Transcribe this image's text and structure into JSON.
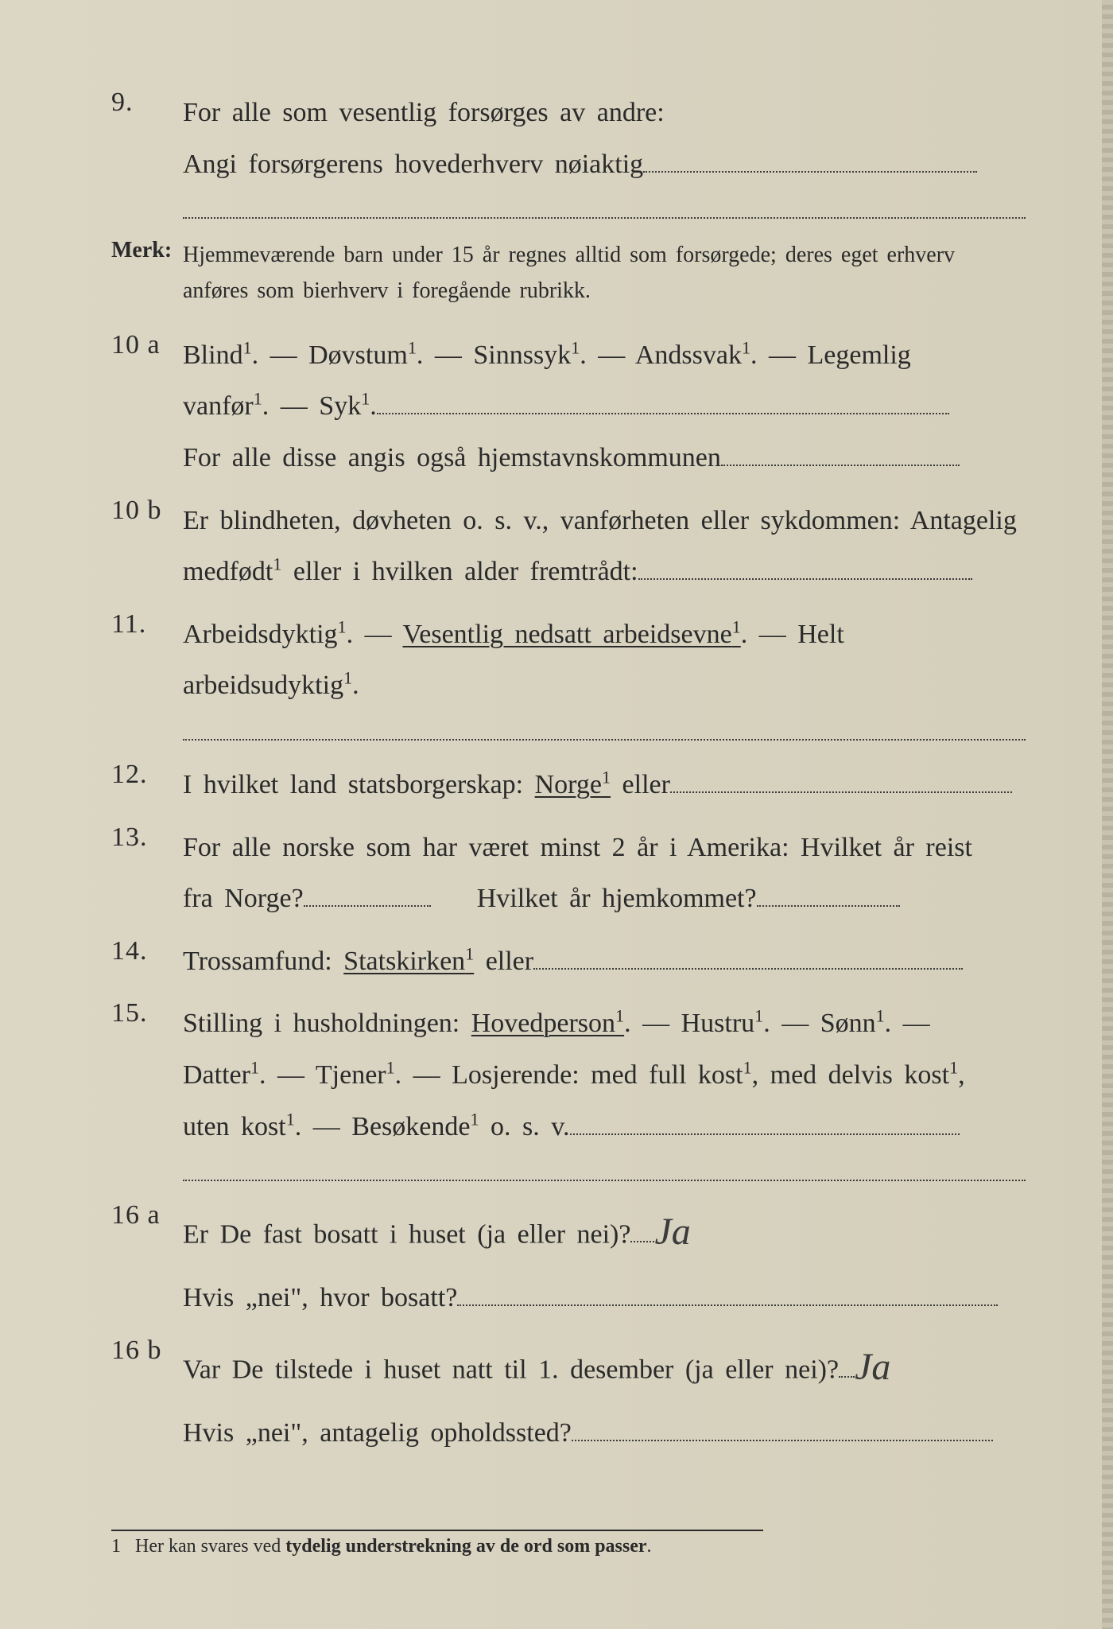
{
  "q9": {
    "num": "9.",
    "line1": "For alle som vesentlig forsørges av andre:",
    "line2": "Angi forsørgerens hovederhverv nøiaktig"
  },
  "merk": {
    "label": "Merk:",
    "text": "Hjemmeværende barn under 15 år regnes alltid som forsørgede; deres eget erhverv anføres som bierhverv i foregående rubrikk."
  },
  "q10a": {
    "num": "10 a",
    "line1a": "Blind¹.   —   Døvstum¹.   —   Sinnssyk¹.   —   Andssvak¹.   —   Legemlig",
    "line1b": "vanfør¹.  —  Syk¹.",
    "line2": "For alle disse angis også hjemstavnskommunen"
  },
  "q10b": {
    "num": "10 b",
    "line1": "Er blindheten, døvheten o. s. v., vanførheten eller sykdommen: Antagelig",
    "line2": "medfødt¹ eller i hvilken alder fremtrådt:"
  },
  "q11": {
    "num": "11.",
    "before": "Arbeidsdyktig¹. — ",
    "underlined": "Vesentlig nedsatt arbeidsevne¹",
    "after": ". — Helt arbeidsudyktig¹."
  },
  "q12": {
    "num": "12.",
    "text_before": "I  hvilket  land  statsborgerskap:   ",
    "underlined": "Norge¹",
    "text_after": " eller"
  },
  "q13": {
    "num": "13.",
    "line1": "For alle norske som har været minst 2 år i Amerika:  Hvilket år reist",
    "line2a": "fra Norge?",
    "line2b": "Hvilket år hjemkommet?"
  },
  "q14": {
    "num": "14.",
    "before": "Trossamfund:   ",
    "underlined": "Statskirken¹",
    "after": " eller"
  },
  "q15": {
    "num": "15.",
    "before": "Stilling  i  husholdningen:   ",
    "underlined": "Hovedperson¹",
    "after1": ".  —  Hustru¹.  —  Sønn¹.  —",
    "line2": "Datter¹.  —  Tjener¹.  —  Losjerende:   med full kost¹,  med delvis kost¹,",
    "line3": "uten kost¹.   —   Besøkende¹  o. s. v."
  },
  "q16a": {
    "num": "16 a",
    "text": "Er De fast bosatt i huset (ja eller nei)?",
    "answer": "Ja",
    "line2": "Hvis „nei\", hvor bosatt?"
  },
  "q16b": {
    "num": "16 b",
    "text": "Var De tilstede i huset natt til 1. desember (ja eller nei)?",
    "answer": "Ja",
    "line2": "Hvis „nei\", antagelig opholdssted?"
  },
  "footnote": {
    "marker": "1",
    "text_a": "Her kan svares ved ",
    "bold": "tydelig understrekning av de ord som passer",
    "text_b": "."
  }
}
